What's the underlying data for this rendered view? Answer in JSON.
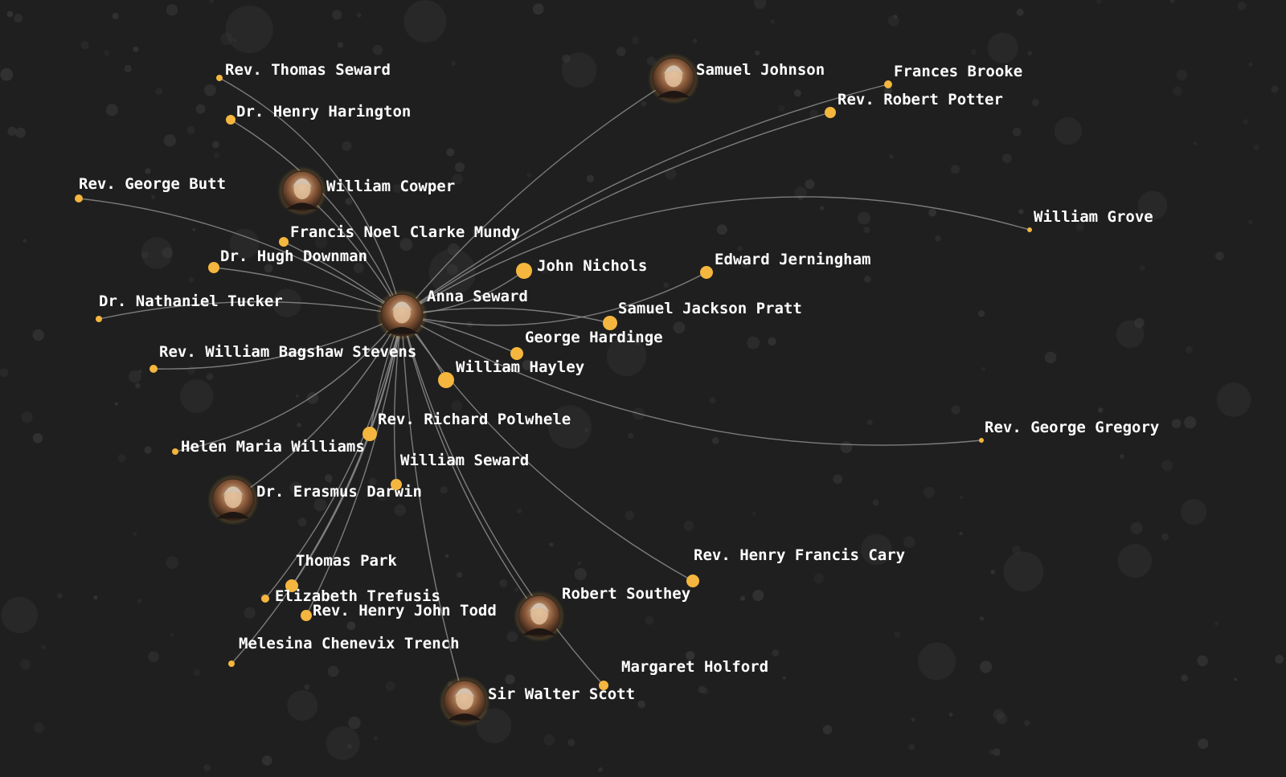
{
  "network": {
    "center": "Anna Seward",
    "colors": {
      "background": "#1f1f1f",
      "node": "#f4b63e",
      "edge": "#8d8d8d",
      "label": "#ffffff"
    },
    "nodes": [
      {
        "id": "anna-seward",
        "label": "Anna Seward",
        "portrait": true
      },
      {
        "id": "rev-thomas-seward",
        "label": "Rev. Thomas Seward"
      },
      {
        "id": "dr-henry-harington",
        "label": "Dr. Henry Harington"
      },
      {
        "id": "rev-george-butt",
        "label": "Rev. George Butt"
      },
      {
        "id": "william-cowper",
        "label": "William Cowper",
        "portrait": true
      },
      {
        "id": "francis-noel-clarke-mundy",
        "label": "Francis Noel Clarke Mundy"
      },
      {
        "id": "dr-hugh-downman",
        "label": "Dr. Hugh Downman"
      },
      {
        "id": "dr-nathaniel-tucker",
        "label": "Dr. Nathaniel Tucker"
      },
      {
        "id": "rev-william-bagshaw-stevens",
        "label": "Rev. William Bagshaw Stevens"
      },
      {
        "id": "helen-maria-williams",
        "label": "Helen Maria Williams"
      },
      {
        "id": "dr-erasmus-darwin",
        "label": "Dr. Erasmus Darwin",
        "portrait": true
      },
      {
        "id": "thomas-park",
        "label": "Thomas Park"
      },
      {
        "id": "elizabeth-trefusis",
        "label": "Elizabeth Trefusis"
      },
      {
        "id": "rev-henry-john-todd",
        "label": "Rev. Henry John Todd"
      },
      {
        "id": "melesina-chenevix-trench",
        "label": "Melesina Chenevix Trench"
      },
      {
        "id": "sir-walter-scott",
        "label": "Sir Walter Scott",
        "portrait": true
      },
      {
        "id": "robert-southey",
        "label": "Robert Southey",
        "portrait": true
      },
      {
        "id": "margaret-holford",
        "label": "Margaret Holford"
      },
      {
        "id": "rev-henry-francis-cary",
        "label": "Rev. Henry Francis Cary"
      },
      {
        "id": "william-seward",
        "label": "William Seward"
      },
      {
        "id": "rev-richard-polwhele",
        "label": "Rev. Richard Polwhele"
      },
      {
        "id": "william-hayley",
        "label": "William Hayley"
      },
      {
        "id": "george-hardinge",
        "label": "George Hardinge"
      },
      {
        "id": "samuel-jackson-pratt",
        "label": "Samuel Jackson Pratt"
      },
      {
        "id": "john-nichols",
        "label": "John Nichols"
      },
      {
        "id": "edward-jerningham",
        "label": "Edward Jerningham"
      },
      {
        "id": "samuel-johnson",
        "label": "Samuel Johnson",
        "portrait": true
      },
      {
        "id": "frances-brooke",
        "label": "Frances Brooke"
      },
      {
        "id": "rev-robert-potter",
        "label": "Rev. Robert Potter"
      },
      {
        "id": "william-grove",
        "label": "William Grove"
      },
      {
        "id": "rev-george-gregory",
        "label": "Rev. George Gregory"
      }
    ],
    "edges": [
      [
        "anna-seward",
        "rev-thomas-seward"
      ],
      [
        "anna-seward",
        "dr-henry-harington"
      ],
      [
        "anna-seward",
        "rev-george-butt"
      ],
      [
        "anna-seward",
        "william-cowper"
      ],
      [
        "anna-seward",
        "francis-noel-clarke-mundy"
      ],
      [
        "anna-seward",
        "dr-hugh-downman"
      ],
      [
        "anna-seward",
        "dr-nathaniel-tucker"
      ],
      [
        "anna-seward",
        "rev-william-bagshaw-stevens"
      ],
      [
        "anna-seward",
        "helen-maria-williams"
      ],
      [
        "anna-seward",
        "dr-erasmus-darwin"
      ],
      [
        "anna-seward",
        "thomas-park"
      ],
      [
        "anna-seward",
        "elizabeth-trefusis"
      ],
      [
        "anna-seward",
        "rev-henry-john-todd"
      ],
      [
        "anna-seward",
        "melesina-chenevix-trench"
      ],
      [
        "anna-seward",
        "sir-walter-scott"
      ],
      [
        "anna-seward",
        "robert-southey"
      ],
      [
        "anna-seward",
        "margaret-holford"
      ],
      [
        "anna-seward",
        "rev-henry-francis-cary"
      ],
      [
        "anna-seward",
        "william-seward"
      ],
      [
        "anna-seward",
        "rev-richard-polwhele"
      ],
      [
        "anna-seward",
        "william-hayley"
      ],
      [
        "anna-seward",
        "george-hardinge"
      ],
      [
        "anna-seward",
        "samuel-jackson-pratt"
      ],
      [
        "anna-seward",
        "john-nichols"
      ],
      [
        "anna-seward",
        "edward-jerningham"
      ],
      [
        "anna-seward",
        "samuel-johnson"
      ],
      [
        "anna-seward",
        "frances-brooke"
      ],
      [
        "anna-seward",
        "rev-robert-potter"
      ],
      [
        "anna-seward",
        "william-grove"
      ],
      [
        "anna-seward",
        "rev-george-gregory"
      ]
    ]
  }
}
